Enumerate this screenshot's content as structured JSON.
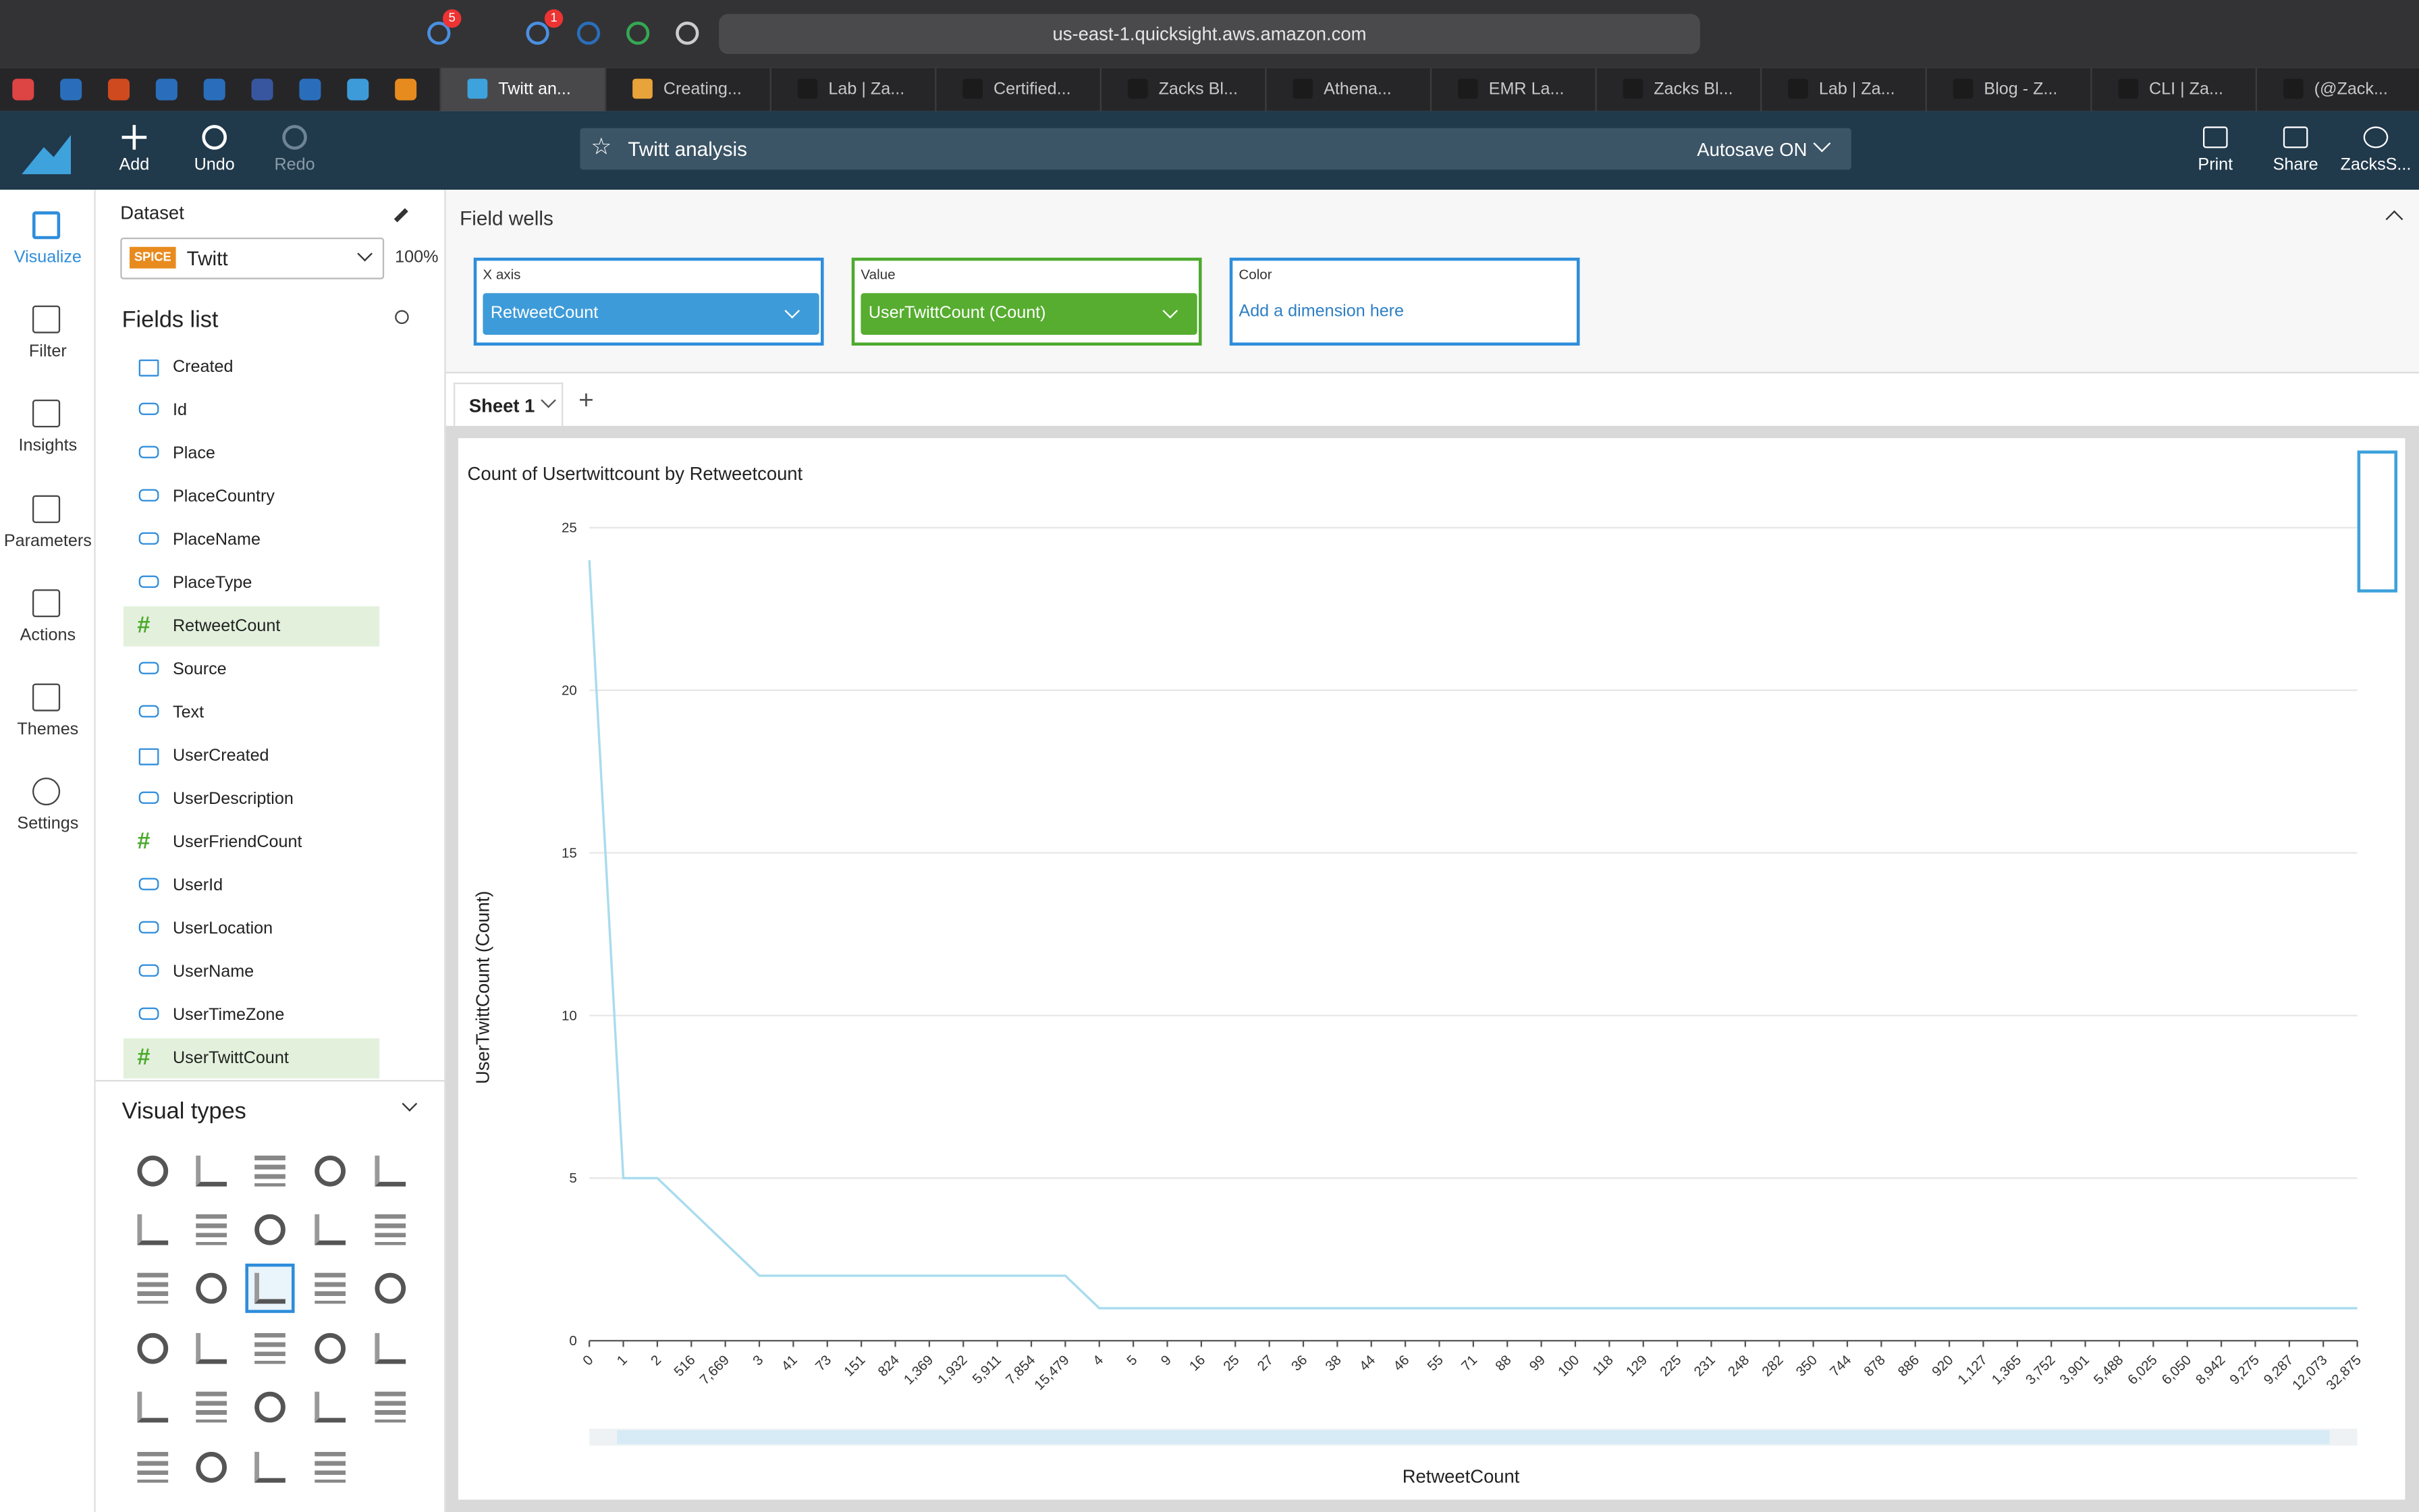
{
  "browser": {
    "url": "us-east-1.quicksight.aws.amazon.com",
    "badges": [
      "5",
      "1"
    ],
    "tabs": [
      "Twitt an...",
      "Creating...",
      "Lab | Za...",
      "Certified...",
      "Zacks Bl...",
      "Athena...",
      "EMR La...",
      "Zacks Bl...",
      "Lab | Za...",
      "Blog - Z...",
      "CLI | Za...",
      "(@Zack..."
    ]
  },
  "toolbar": {
    "add": "Add",
    "undo": "Undo",
    "redo": "Redo",
    "analysis": "Twitt analysis",
    "autosave": "Autosave ON",
    "print": "Print",
    "share": "Share",
    "user": "ZacksS..."
  },
  "nav": [
    "Visualize",
    "Filter",
    "Insights",
    "Parameters",
    "Actions",
    "Themes",
    "Settings"
  ],
  "dataset": {
    "heading": "Dataset",
    "badge": "SPICE",
    "name": "Twitt",
    "zoom": "100%"
  },
  "fields": {
    "heading": "Fields list",
    "items": [
      {
        "name": "Created",
        "kind": "date"
      },
      {
        "name": "Id",
        "kind": "text"
      },
      {
        "name": "Place",
        "kind": "text"
      },
      {
        "name": "PlaceCountry",
        "kind": "text"
      },
      {
        "name": "PlaceName",
        "kind": "text"
      },
      {
        "name": "PlaceType",
        "kind": "text"
      },
      {
        "name": "RetweetCount",
        "kind": "number",
        "selected": true
      },
      {
        "name": "Source",
        "kind": "text"
      },
      {
        "name": "Text",
        "kind": "text"
      },
      {
        "name": "UserCreated",
        "kind": "date"
      },
      {
        "name": "UserDescription",
        "kind": "text"
      },
      {
        "name": "UserFriendCount",
        "kind": "number"
      },
      {
        "name": "UserId",
        "kind": "text"
      },
      {
        "name": "UserLocation",
        "kind": "text"
      },
      {
        "name": "UserName",
        "kind": "text"
      },
      {
        "name": "UserTimeZone",
        "kind": "text"
      },
      {
        "name": "UserTwittCount",
        "kind": "number",
        "selected": true
      }
    ]
  },
  "visual_types": {
    "heading": "Visual types"
  },
  "field_wells": {
    "heading": "Field wells",
    "x_axis": {
      "label": "X axis",
      "field": "RetweetCount"
    },
    "value": {
      "label": "Value",
      "field": "UserTwittCount (Count)"
    },
    "color": {
      "label": "Color",
      "placeholder": "Add a dimension here"
    }
  },
  "sheet": "Sheet 1",
  "chart_data": {
    "type": "line",
    "title": "Count of Usertwittcount by Retweetcount",
    "y_label": "UserTwittCount (Count)",
    "x_label": "RetweetCount",
    "color": "#a9dcee",
    "grid": true,
    "categories": [
      "0",
      "1",
      "2",
      "516",
      "7,669",
      "3",
      "41",
      "73",
      "151",
      "824",
      "1,369",
      "1,932",
      "5,911",
      "7,854",
      "15,479",
      "4",
      "5",
      "9",
      "16",
      "25",
      "27",
      "36",
      "38",
      "44",
      "46",
      "55",
      "71",
      "88",
      "99",
      "100",
      "118",
      "129",
      "225",
      "231",
      "248",
      "282",
      "350",
      "744",
      "878",
      "886",
      "920",
      "1,127",
      "1,365",
      "3,752",
      "3,901",
      "5,488",
      "6,025",
      "6,050",
      "8,942",
      "9,275",
      "9,287",
      "12,073",
      "32,875"
    ],
    "values": [
      24,
      5,
      5,
      4,
      3,
      2,
      2,
      2,
      2,
      2,
      2,
      2,
      2,
      2,
      2,
      1,
      1,
      1,
      1,
      1,
      1,
      1,
      1,
      1,
      1,
      1,
      1,
      1,
      1,
      1,
      1,
      1,
      1,
      1,
      1,
      1,
      1,
      1,
      1,
      1,
      1,
      1,
      1,
      1,
      1,
      1,
      1,
      1,
      1,
      1,
      1,
      1,
      1
    ],
    "ylim": [
      0,
      25
    ],
    "yticks": [
      0,
      5,
      10,
      15,
      20,
      25
    ]
  }
}
